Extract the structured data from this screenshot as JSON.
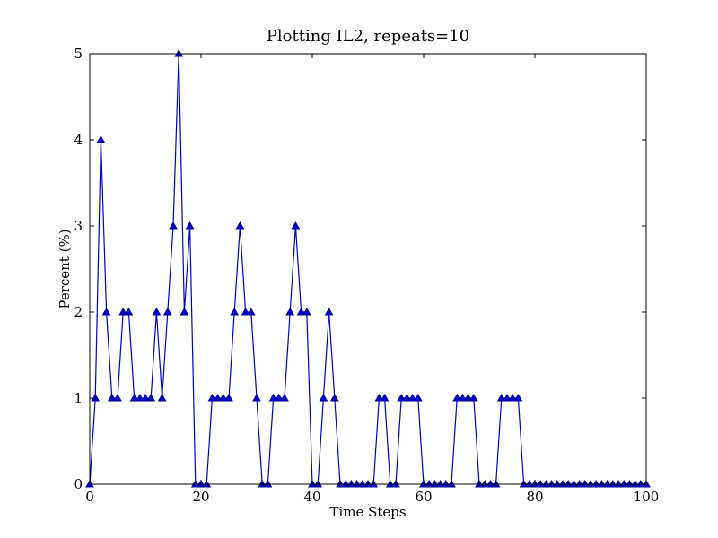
{
  "chart_data": {
    "type": "line",
    "title": "Plotting IL2, repeats=10",
    "xlabel": "Time Steps",
    "ylabel": "Percent (%)",
    "xlim": [
      0,
      100
    ],
    "ylim": [
      0,
      5
    ],
    "xticks": [
      0,
      20,
      40,
      60,
      80,
      100
    ],
    "yticks": [
      0,
      1,
      2,
      3,
      4,
      5
    ],
    "grid": false,
    "marker": "triangle",
    "colors": {
      "line": "#0000cc",
      "marker": "#0000cc"
    },
    "series": [
      {
        "x": [
          0,
          1,
          2,
          3,
          4,
          5,
          6,
          7,
          8,
          9,
          10,
          11,
          12,
          13,
          14,
          15,
          16,
          17,
          18,
          19,
          20,
          21,
          22,
          23,
          24,
          25,
          26,
          27,
          28,
          29,
          30,
          31,
          32,
          33,
          34,
          35,
          36,
          37,
          38,
          39,
          40,
          41,
          42,
          43,
          44,
          45,
          46,
          47,
          48,
          49,
          50,
          51,
          52,
          53,
          54,
          55,
          56,
          57,
          58,
          59,
          60,
          61,
          62,
          63,
          64,
          65,
          66,
          67,
          68,
          69,
          70,
          71,
          72,
          73,
          74,
          75,
          76,
          77,
          78,
          79,
          80,
          81,
          82,
          83,
          84,
          85,
          86,
          87,
          88,
          89,
          90,
          91,
          92,
          93,
          94,
          95,
          96,
          97,
          98,
          99,
          100
        ],
        "values": [
          0,
          1,
          4,
          2,
          1,
          1,
          2,
          2,
          1,
          1,
          1,
          1,
          2,
          1,
          2,
          3,
          5,
          2,
          3,
          0,
          0,
          0,
          1,
          1,
          1,
          1,
          2,
          3,
          2,
          2,
          1,
          0,
          0,
          1,
          1,
          1,
          2,
          3,
          2,
          2,
          0,
          0,
          1,
          2,
          1,
          0,
          0,
          0,
          0,
          0,
          0,
          0,
          1,
          1,
          0,
          0,
          1,
          1,
          1,
          1,
          0,
          0,
          0,
          0,
          0,
          0,
          1,
          1,
          1,
          1,
          0,
          0,
          0,
          0,
          1,
          1,
          1,
          1,
          0,
          0,
          0,
          0,
          0,
          0,
          0,
          0,
          0,
          0,
          0,
          0,
          0,
          0,
          0,
          0,
          0,
          0,
          0,
          0,
          0,
          0,
          0
        ]
      }
    ]
  }
}
